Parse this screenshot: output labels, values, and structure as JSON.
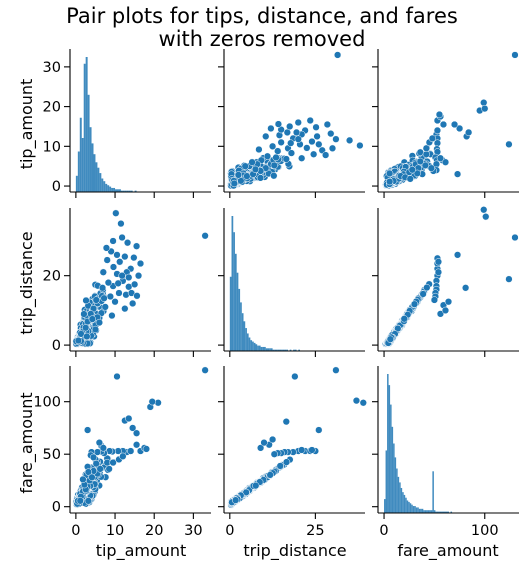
{
  "chart_data": {
    "type": "pairplot",
    "title_lines": [
      "Pair plots for tips, distance, and fares",
      "with zeros removed"
    ],
    "variables": [
      "tip_amount",
      "trip_distance",
      "fare_amount"
    ],
    "axis_ranges": {
      "tip_amount": [
        -1.5,
        34.5
      ],
      "trip_distance": [
        -1.7,
        39.5
      ],
      "fare_amount": [
        -6,
        134
      ]
    },
    "ticks": {
      "tip_amount": [
        0,
        10,
        20,
        30
      ],
      "trip_distance": [
        0,
        25
      ],
      "trip_distance_y": [
        0,
        20
      ],
      "fare_amount": [
        0,
        100
      ],
      "fare_amount_y": [
        0,
        50,
        100
      ]
    },
    "diagonal": "histogram",
    "off_diagonal": "scatter",
    "colors": {
      "points": "#1f77b4",
      "point_edge": "#ffffff",
      "bars": "#1f77b4"
    },
    "histograms": {
      "tip_amount": {
        "bin_width": 0.5,
        "counts": [
          12,
          30,
          55,
          40,
          95,
          100,
          72,
          48,
          36,
          28,
          22,
          18,
          14,
          10,
          8,
          6,
          5,
          4,
          3,
          3,
          2,
          2,
          2,
          1,
          1,
          1,
          1,
          1,
          1,
          0,
          1
        ]
      },
      "trip_distance": {
        "bin_width": 0.5,
        "counts": [
          55,
          100,
          88,
          72,
          58,
          46,
          36,
          28,
          22,
          17,
          13,
          10,
          8,
          7,
          6,
          5,
          4,
          4,
          3,
          3,
          3,
          2,
          2,
          2,
          2,
          1,
          1,
          1,
          1,
          1,
          1,
          1,
          1,
          1,
          0,
          1,
          0,
          1,
          1,
          0,
          1
        ]
      },
      "fare_amount": {
        "bin_width": 1.5,
        "counts": [
          10,
          45,
          100,
          92,
          78,
          62,
          50,
          40,
          32,
          26,
          22,
          18,
          15,
          13,
          11,
          9,
          8,
          7,
          6,
          5,
          5,
          4,
          4,
          3,
          3,
          3,
          2,
          2,
          2,
          2,
          2,
          2,
          30,
          2,
          1,
          1,
          1,
          1,
          1,
          1,
          1,
          1,
          1,
          0,
          1
        ]
      }
    },
    "scatter_points": {
      "tip_vs_distance": [
        [
          33,
          31.5
        ],
        [
          11.5,
          35
        ],
        [
          9.5,
          30
        ],
        [
          10.2,
          38
        ],
        [
          9,
          27
        ],
        [
          7.8,
          28
        ],
        [
          15.5,
          28.5
        ],
        [
          14,
          22
        ],
        [
          12.5,
          25.5
        ],
        [
          11.2,
          24
        ],
        [
          13,
          21
        ],
        [
          10.5,
          20.5
        ],
        [
          12,
          18.5
        ],
        [
          9.5,
          17
        ],
        [
          13.5,
          16.8
        ],
        [
          11,
          15
        ],
        [
          8.8,
          14
        ],
        [
          12.8,
          14.5
        ],
        [
          10,
          12.5
        ],
        [
          14.5,
          12
        ],
        [
          7.5,
          11
        ],
        [
          6.5,
          9.2
        ],
        [
          9.2,
          8.5
        ],
        [
          5.5,
          8
        ],
        [
          13.5,
          19.5
        ],
        [
          15,
          17.5
        ],
        [
          16,
          20
        ],
        [
          12.5,
          10.5
        ],
        [
          11.8,
          20
        ],
        [
          14.2,
          15
        ],
        [
          10.8,
          17.8
        ],
        [
          8.3,
          18
        ],
        [
          7.2,
          13.5
        ],
        [
          9.6,
          22.5
        ],
        [
          6.8,
          16.5
        ],
        [
          5.2,
          13
        ],
        [
          15.6,
          14.2
        ],
        [
          4.5,
          10.5
        ],
        [
          3.8,
          9
        ],
        [
          6,
          6.5
        ],
        [
          2.5,
          5
        ],
        [
          3,
          6.8
        ],
        [
          4.2,
          7.5
        ],
        [
          5,
          4.5
        ],
        [
          2.8,
          2.5
        ],
        [
          10.5,
          26
        ],
        [
          8,
          24.5
        ],
        [
          7,
          21
        ],
        [
          11.8,
          31
        ],
        [
          14.8,
          25.2
        ],
        [
          13.2,
          29.5
        ],
        [
          16.5,
          23.5
        ]
      ],
      "tip_vs_fare": [
        [
          33,
          130
        ],
        [
          10.5,
          124
        ],
        [
          12.5,
          82
        ],
        [
          13.5,
          84
        ],
        [
          14.5,
          75
        ],
        [
          15.5,
          70
        ],
        [
          19,
          95
        ],
        [
          21,
          99
        ],
        [
          19.5,
          100
        ],
        [
          16.5,
          53
        ],
        [
          17.5,
          56
        ],
        [
          18,
          55
        ],
        [
          13,
          52
        ],
        [
          12,
          53
        ],
        [
          10.8,
          53
        ],
        [
          9.3,
          52.5
        ],
        [
          8.6,
          53
        ],
        [
          8,
          46
        ],
        [
          7.2,
          51
        ],
        [
          6.5,
          52.5
        ],
        [
          5.5,
          52
        ],
        [
          5,
          45
        ],
        [
          4,
          52
        ],
        [
          3.8,
          49
        ],
        [
          3,
          38
        ],
        [
          2.7,
          30
        ],
        [
          4.5,
          34
        ],
        [
          5.2,
          41
        ],
        [
          6.2,
          36
        ],
        [
          3,
          73
        ],
        [
          6.5,
          58
        ],
        [
          8.5,
          36
        ],
        [
          8,
          42
        ],
        [
          9.5,
          42
        ],
        [
          11,
          45
        ],
        [
          12,
          48
        ],
        [
          14,
          53
        ],
        [
          15.5,
          59
        ],
        [
          6,
          61
        ],
        [
          7,
          56
        ],
        [
          4.5,
          47
        ],
        [
          2.2,
          21
        ],
        [
          3.5,
          25
        ],
        [
          1.8,
          26
        ],
        [
          3.2,
          33
        ],
        [
          4.1,
          28
        ]
      ],
      "distance_vs_fare": [
        [
          31,
          130
        ],
        [
          19,
          124
        ],
        [
          37,
          101
        ],
        [
          39,
          99
        ],
        [
          26,
          73
        ],
        [
          16.5,
          81
        ],
        [
          11.5,
          59
        ],
        [
          9,
          56
        ],
        [
          12.5,
          64
        ],
        [
          10,
          61
        ],
        [
          20,
          53
        ],
        [
          22,
          53
        ],
        [
          23.5,
          53
        ],
        [
          25,
          53
        ],
        [
          18.5,
          52
        ],
        [
          17,
          52
        ],
        [
          16,
          52
        ],
        [
          15,
          51
        ],
        [
          14,
          51
        ],
        [
          13,
          50
        ],
        [
          24,
          54
        ],
        [
          21,
          54
        ]
      ]
    }
  }
}
